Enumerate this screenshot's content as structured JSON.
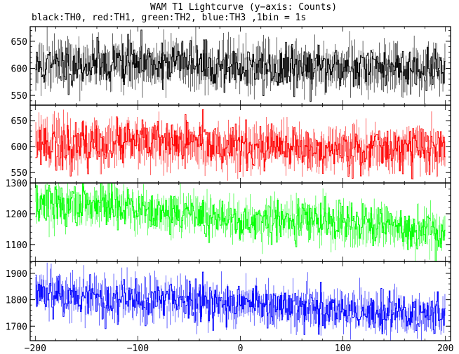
{
  "chart_data": {
    "type": "line",
    "title": "WAM T1 Lightcurve (y−axis: Counts)",
    "subtitle": "black:TH0, red:TH1, green:TH2, blue:TH3 ,1bin = 1s",
    "xlabel": "",
    "x_range": [
      -205,
      205
    ],
    "x_ticks": [
      -200,
      -100,
      0,
      100,
      200
    ],
    "x_tick_labels": [
      "−200",
      "−100",
      "0",
      "100",
      "200"
    ],
    "panels": [
      {
        "series": "TH0",
        "color": "#000000",
        "ylim": [
          532,
          677
        ],
        "y_ticks": [
          550,
          600,
          650
        ],
        "y_tick_labels": [
          "550",
          "600",
          "650"
        ],
        "trend": [
          610,
          598
        ],
        "noise_amp": 28,
        "seed": 11
      },
      {
        "series": "TH1",
        "color": "#ff0000",
        "ylim": [
          530,
          680
        ],
        "y_ticks": [
          550,
          600,
          650
        ],
        "y_tick_labels": [
          "550",
          "600",
          "650"
        ],
        "trend": [
          608,
          592
        ],
        "noise_amp": 28,
        "seed": 23
      },
      {
        "series": "TH2",
        "color": "#00ff00",
        "ylim": [
          1045,
          1300
        ],
        "y_ticks": [
          1100,
          1200,
          1300
        ],
        "y_tick_labels": [
          "1100",
          "1200",
          "1300"
        ],
        "trend": [
          1235,
          1140
        ],
        "noise_amp": 45,
        "seed": 37
      },
      {
        "series": "TH3",
        "color": "#0000ff",
        "ylim": [
          1645,
          1945
        ],
        "y_ticks": [
          1700,
          1800,
          1900
        ],
        "y_tick_labels": [
          "1700",
          "1800",
          "1900"
        ],
        "trend": [
          1830,
          1735
        ],
        "noise_amp": 55,
        "seed": 53
      }
    ],
    "bins": 400,
    "grid": false,
    "legend": "subtitle-text"
  }
}
